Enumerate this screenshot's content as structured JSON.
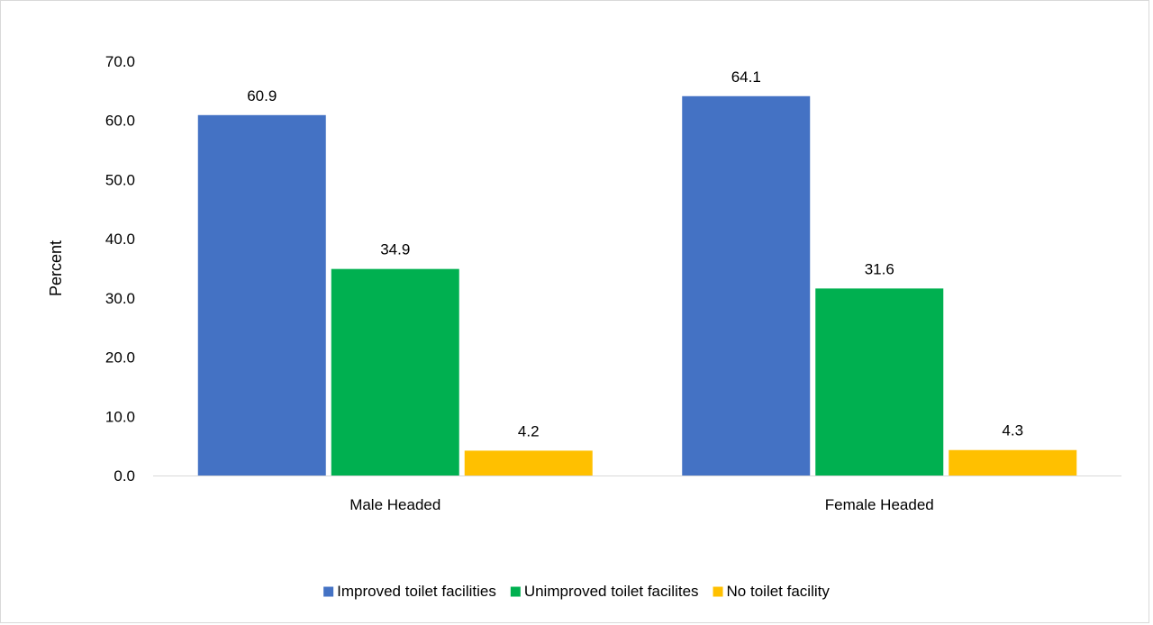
{
  "chart_data": {
    "type": "bar",
    "title": "",
    "xlabel": "",
    "ylabel": "Percent",
    "ylim": [
      0,
      70
    ],
    "yticks": [
      "0.0",
      "10.0",
      "20.0",
      "30.0",
      "40.0",
      "50.0",
      "60.0",
      "70.0"
    ],
    "categories": [
      "Male Headed",
      "Female Headed"
    ],
    "series": [
      {
        "name": "Improved toilet facilities",
        "values": [
          60.9,
          64.1
        ],
        "labels": [
          "60.9",
          "64.1"
        ],
        "color": "#4472C4"
      },
      {
        "name": "Unimproved toilet facilites",
        "values": [
          34.9,
          31.6
        ],
        "labels": [
          "34.9",
          "31.6"
        ],
        "color": "#00B050"
      },
      {
        "name": "No toilet facility",
        "values": [
          4.2,
          4.3
        ],
        "labels": [
          "4.2",
          "4.3"
        ],
        "color": "#FFC000"
      }
    ],
    "grid": false,
    "legend_position": "bottom"
  }
}
